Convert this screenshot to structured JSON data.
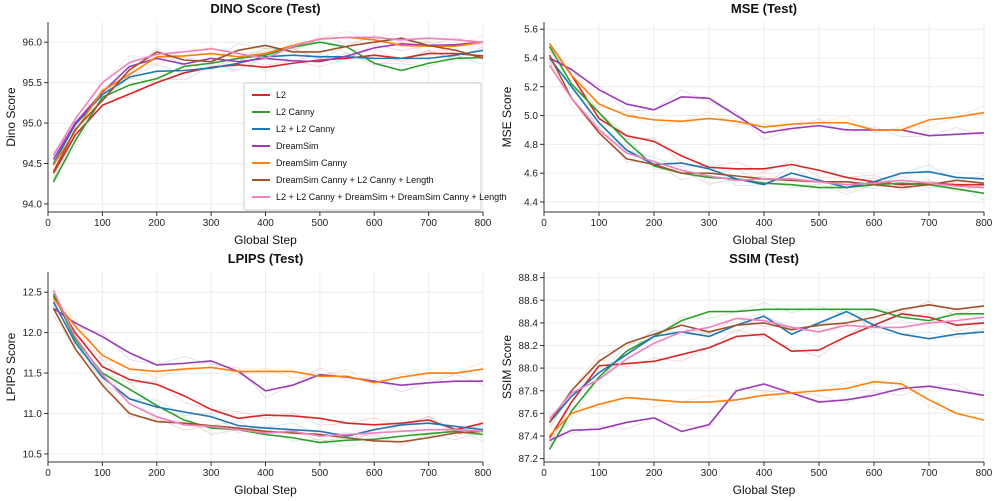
{
  "chart_data": [
    {
      "type": "line",
      "title": "DINO Score (Test)",
      "xlabel": "Global Step",
      "ylabel": "Dino Score",
      "xlim": [
        0,
        800
      ],
      "ylim": [
        93.9,
        96.25
      ],
      "xticks": [
        0,
        100,
        200,
        300,
        400,
        500,
        600,
        700,
        800
      ],
      "yticks": [
        94.0,
        94.5,
        95.0,
        95.5,
        96.0
      ],
      "ytick_labels": [
        "94.0",
        "94.5",
        "95.0",
        "95.5",
        "96.0"
      ],
      "legend_position": "center-right",
      "x": [
        10,
        50,
        100,
        150,
        200,
        250,
        300,
        350,
        400,
        450,
        500,
        550,
        600,
        650,
        700,
        750,
        800
      ],
      "series": [
        {
          "name": "L2",
          "color": "#d62728",
          "values": [
            94.38,
            94.85,
            95.22,
            95.36,
            95.5,
            95.62,
            95.69,
            95.72,
            95.69,
            95.74,
            95.78,
            95.8,
            95.84,
            95.8,
            95.86,
            95.86,
            95.83
          ]
        },
        {
          "name": "L2 Canny",
          "color": "#2ca02c",
          "values": [
            94.27,
            94.78,
            95.32,
            95.47,
            95.55,
            95.7,
            95.74,
            95.8,
            95.84,
            95.94,
            96.0,
            95.94,
            95.74,
            95.65,
            95.74,
            95.8,
            95.81
          ]
        },
        {
          "name": "L2 + L2 Canny",
          "color": "#1f77b4",
          "values": [
            94.5,
            94.98,
            95.35,
            95.57,
            95.64,
            95.65,
            95.68,
            95.74,
            95.82,
            95.84,
            95.82,
            95.82,
            95.8,
            95.8,
            95.8,
            95.84,
            95.9
          ]
        },
        {
          "name": "DreamSim",
          "color": "#9a3bb5",
          "values": [
            94.55,
            95.0,
            95.38,
            95.7,
            95.8,
            95.73,
            95.8,
            95.76,
            95.8,
            95.77,
            95.76,
            95.83,
            95.93,
            95.98,
            95.96,
            95.97,
            96.0
          ]
        },
        {
          "name": "DreamSim Canny",
          "color": "#ff7f0e",
          "values": [
            94.48,
            94.9,
            95.4,
            95.6,
            95.82,
            95.83,
            95.86,
            95.82,
            95.86,
            95.96,
            96.04,
            96.06,
            96.03,
            95.96,
            95.95,
            95.95,
            96.0
          ]
        },
        {
          "name": "DreamSim Canny + L2 Canny + Length",
          "color": "#a0522d",
          "values": [
            94.4,
            94.92,
            95.28,
            95.66,
            95.88,
            95.78,
            95.76,
            95.9,
            95.96,
            95.88,
            95.88,
            95.95,
            96.0,
            96.05,
            95.96,
            95.9,
            95.8
          ]
        },
        {
          "name": "L2 + L2 Canny + DreamSim + DreamSim Canny + Length",
          "color": "#f27fbe",
          "values": [
            94.6,
            95.05,
            95.5,
            95.75,
            95.85,
            95.88,
            95.92,
            95.86,
            95.8,
            95.95,
            96.04,
            96.06,
            96.06,
            96.03,
            96.05,
            96.03,
            96.0
          ]
        }
      ]
    },
    {
      "type": "line",
      "title": "MSE (Test)",
      "xlabel": "Global Step",
      "ylabel": "MSE Score",
      "xlim": [
        0,
        800
      ],
      "ylim": [
        4.33,
        5.65
      ],
      "xticks": [
        0,
        100,
        200,
        300,
        400,
        500,
        600,
        700,
        800
      ],
      "yticks": [
        4.4,
        4.6,
        4.8,
        5.0,
        5.2,
        5.4,
        5.6
      ],
      "ytick_labels": [
        "4.4",
        "4.6",
        "4.8",
        "5.0",
        "5.2",
        "5.4",
        "5.6"
      ],
      "x": [
        10,
        50,
        100,
        150,
        200,
        250,
        300,
        350,
        400,
        450,
        500,
        550,
        600,
        650,
        700,
        750,
        800
      ],
      "series": [
        {
          "name": "L2",
          "color": "#d62728",
          "values": [
            5.5,
            5.28,
            4.98,
            4.86,
            4.82,
            4.72,
            4.64,
            4.63,
            4.63,
            4.66,
            4.62,
            4.57,
            4.54,
            4.52,
            4.53,
            4.52,
            4.52
          ]
        },
        {
          "name": "L2 Canny",
          "color": "#2ca02c",
          "values": [
            5.48,
            5.22,
            5.02,
            4.82,
            4.65,
            4.6,
            4.57,
            4.56,
            4.53,
            4.52,
            4.5,
            4.5,
            4.52,
            4.53,
            4.52,
            4.49,
            4.46
          ]
        },
        {
          "name": "L2 + L2 Canny",
          "color": "#1f77b4",
          "values": [
            5.4,
            5.2,
            4.95,
            4.76,
            4.66,
            4.67,
            4.63,
            4.56,
            4.52,
            4.6,
            4.55,
            4.5,
            4.54,
            4.6,
            4.61,
            4.57,
            4.56
          ]
        },
        {
          "name": "DreamSim",
          "color": "#9a3bb5",
          "values": [
            5.4,
            5.32,
            5.18,
            5.08,
            5.04,
            5.13,
            5.12,
            5.0,
            4.88,
            4.91,
            4.93,
            4.9,
            4.9,
            4.9,
            4.86,
            4.87,
            4.88
          ]
        },
        {
          "name": "DreamSim Canny",
          "color": "#ff7f0e",
          "values": [
            5.5,
            5.28,
            5.08,
            5.0,
            4.97,
            4.96,
            4.98,
            4.96,
            4.92,
            4.94,
            4.95,
            4.95,
            4.9,
            4.9,
            4.97,
            4.99,
            5.02
          ]
        },
        {
          "name": "DreamSim Canny + L2 Canny + Length",
          "color": "#a0522d",
          "values": [
            5.42,
            5.12,
            4.88,
            4.7,
            4.66,
            4.6,
            4.6,
            4.58,
            4.56,
            4.55,
            4.54,
            4.54,
            4.52,
            4.5,
            4.52,
            4.55,
            4.53
          ]
        },
        {
          "name": "L2 + L2 Canny + DreamSim + DreamSim Canny + Length",
          "color": "#f27fbe",
          "values": [
            5.35,
            5.12,
            4.9,
            4.74,
            4.68,
            4.62,
            4.58,
            4.55,
            4.56,
            4.56,
            4.54,
            4.52,
            4.53,
            4.55,
            4.53,
            4.51,
            4.5
          ]
        }
      ]
    },
    {
      "type": "line",
      "title": "LPIPS (Test)",
      "xlabel": "Global Step",
      "ylabel": "LPIPS Score",
      "xlim": [
        0,
        800
      ],
      "ylim": [
        10.4,
        12.75
      ],
      "xticks": [
        0,
        100,
        200,
        300,
        400,
        500,
        600,
        700,
        800
      ],
      "yticks": [
        10.5,
        11.0,
        11.5,
        12.0,
        12.5
      ],
      "ytick_labels": [
        "10.5",
        "11.0",
        "11.5",
        "12.0",
        "12.5"
      ],
      "x": [
        10,
        50,
        100,
        150,
        200,
        250,
        300,
        350,
        400,
        450,
        500,
        550,
        600,
        650,
        700,
        750,
        800
      ],
      "series": [
        {
          "name": "L2",
          "color": "#d62728",
          "values": [
            12.45,
            12.0,
            11.58,
            11.42,
            11.36,
            11.22,
            11.05,
            10.94,
            10.98,
            10.97,
            10.94,
            10.88,
            10.86,
            10.88,
            10.92,
            10.8,
            10.88
          ]
        },
        {
          "name": "L2 Canny",
          "color": "#2ca02c",
          "values": [
            12.48,
            11.92,
            11.5,
            11.3,
            11.1,
            10.92,
            10.82,
            10.8,
            10.74,
            10.7,
            10.64,
            10.67,
            10.68,
            10.72,
            10.75,
            10.78,
            10.74
          ]
        },
        {
          "name": "L2 + L2 Canny",
          "color": "#1f77b4",
          "values": [
            12.38,
            11.88,
            11.45,
            11.18,
            11.08,
            11.02,
            10.96,
            10.85,
            10.82,
            10.8,
            10.78,
            10.72,
            10.8,
            10.86,
            10.88,
            10.84,
            10.8
          ]
        },
        {
          "name": "DreamSim",
          "color": "#9a3bb5",
          "values": [
            12.3,
            12.12,
            11.95,
            11.75,
            11.6,
            11.62,
            11.65,
            11.52,
            11.28,
            11.35,
            11.48,
            11.45,
            11.4,
            11.35,
            11.38,
            11.4,
            11.4
          ]
        },
        {
          "name": "DreamSim Canny",
          "color": "#ff7f0e",
          "values": [
            12.42,
            12.08,
            11.72,
            11.55,
            11.52,
            11.55,
            11.57,
            11.52,
            11.52,
            11.52,
            11.46,
            11.46,
            11.38,
            11.45,
            11.5,
            11.5,
            11.55
          ]
        },
        {
          "name": "DreamSim Canny + L2 Canny + Length",
          "color": "#a0522d",
          "values": [
            12.3,
            11.8,
            11.35,
            11.0,
            10.9,
            10.88,
            10.85,
            10.82,
            10.78,
            10.76,
            10.74,
            10.7,
            10.66,
            10.65,
            10.7,
            10.76,
            10.78
          ]
        },
        {
          "name": "L2 + L2 Canny + DreamSim + DreamSim Canny + Length",
          "color": "#f27fbe",
          "values": [
            12.52,
            11.95,
            11.48,
            11.12,
            10.96,
            10.86,
            10.84,
            10.8,
            10.76,
            10.78,
            10.72,
            10.74,
            10.76,
            10.78,
            10.8,
            10.8,
            10.78
          ]
        }
      ]
    },
    {
      "type": "line",
      "title": "SSIM (Test)",
      "xlabel": "Global Step",
      "ylabel": "SSIM Score",
      "xlim": [
        0,
        800
      ],
      "ylim": [
        87.17,
        88.85
      ],
      "xticks": [
        0,
        100,
        200,
        300,
        400,
        500,
        600,
        700,
        800
      ],
      "yticks": [
        87.2,
        87.4,
        87.6,
        87.8,
        88.0,
        88.2,
        88.4,
        88.6,
        88.8
      ],
      "ytick_labels": [
        "87.2",
        "87.4",
        "87.6",
        "87.8",
        "88.0",
        "88.2",
        "88.4",
        "88.6",
        "88.8"
      ],
      "x": [
        10,
        50,
        100,
        150,
        200,
        250,
        300,
        350,
        400,
        450,
        500,
        550,
        600,
        650,
        700,
        750,
        800
      ],
      "series": [
        {
          "name": "L2",
          "color": "#d62728",
          "values": [
            87.38,
            87.7,
            88.02,
            88.04,
            88.06,
            88.12,
            88.18,
            88.28,
            88.3,
            88.15,
            88.16,
            88.28,
            88.38,
            88.48,
            88.45,
            88.38,
            88.4
          ]
        },
        {
          "name": "L2 Canny",
          "color": "#2ca02c",
          "values": [
            87.28,
            87.62,
            87.92,
            88.15,
            88.28,
            88.42,
            88.5,
            88.5,
            88.52,
            88.52,
            88.52,
            88.52,
            88.52,
            88.45,
            88.42,
            88.48,
            88.48
          ]
        },
        {
          "name": "L2 + L2 Canny",
          "color": "#1f77b4",
          "values": [
            87.52,
            87.75,
            87.96,
            88.12,
            88.28,
            88.32,
            88.28,
            88.38,
            88.46,
            88.3,
            88.4,
            88.5,
            88.38,
            88.3,
            88.26,
            88.3,
            88.32
          ]
        },
        {
          "name": "DreamSim",
          "color": "#9a3bb5",
          "values": [
            87.36,
            87.45,
            87.46,
            87.52,
            87.56,
            87.44,
            87.5,
            87.8,
            87.86,
            87.78,
            87.7,
            87.72,
            87.76,
            87.82,
            87.84,
            87.8,
            87.76
          ]
        },
        {
          "name": "DreamSim Canny",
          "color": "#ff7f0e",
          "values": [
            87.4,
            87.6,
            87.68,
            87.74,
            87.72,
            87.7,
            87.7,
            87.72,
            87.76,
            87.78,
            87.8,
            87.82,
            87.88,
            87.86,
            87.72,
            87.6,
            87.54
          ]
        },
        {
          "name": "DreamSim Canny + L2 Canny + Length",
          "color": "#a0522d",
          "values": [
            87.52,
            87.8,
            88.06,
            88.22,
            88.3,
            88.38,
            88.32,
            88.38,
            88.4,
            88.34,
            88.38,
            88.4,
            88.45,
            88.52,
            88.56,
            88.52,
            88.55
          ]
        },
        {
          "name": "L2 + L2 Canny + DreamSim + DreamSim Canny + Length",
          "color": "#f27fbe",
          "values": [
            87.55,
            87.78,
            87.9,
            88.08,
            88.22,
            88.32,
            88.36,
            88.44,
            88.42,
            88.36,
            88.32,
            88.38,
            88.36,
            88.36,
            88.4,
            88.42,
            88.45
          ]
        }
      ]
    }
  ]
}
